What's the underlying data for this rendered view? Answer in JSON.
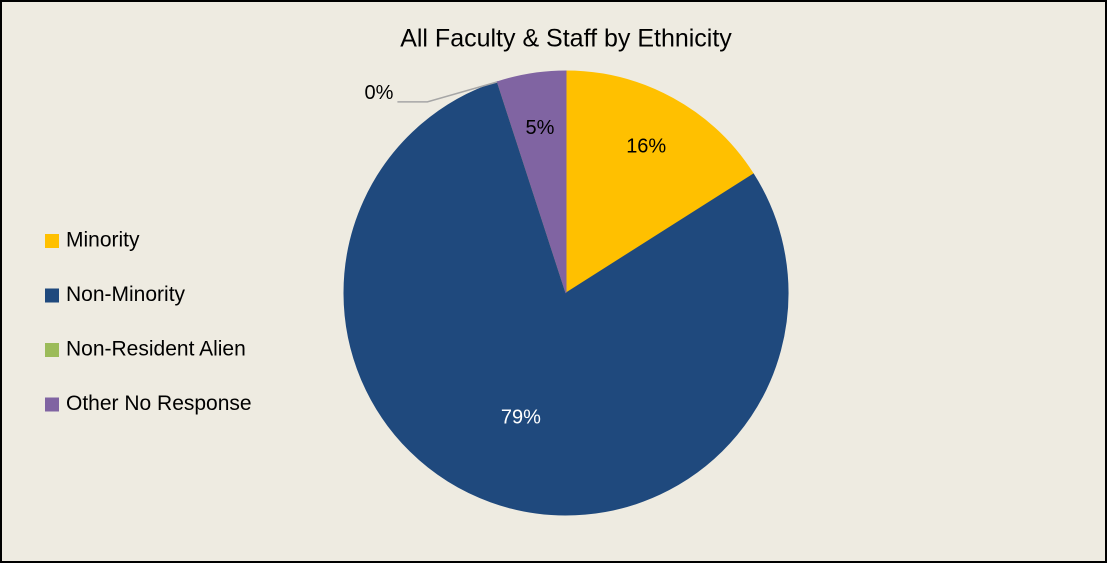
{
  "chart_data": {
    "type": "pie",
    "title": "All Faculty & Staff by Ethnicity",
    "categories": [
      "Minority",
      "Non-Minority",
      "Non-Resident Alien",
      "Other No Response"
    ],
    "values": [
      16,
      79,
      0,
      5
    ],
    "value_labels": [
      "16%",
      "79%",
      "0%",
      "5%"
    ],
    "colors": [
      "#ffc000",
      "#1f497d",
      "#9bbb59",
      "#8064a2"
    ],
    "legend": "left"
  }
}
